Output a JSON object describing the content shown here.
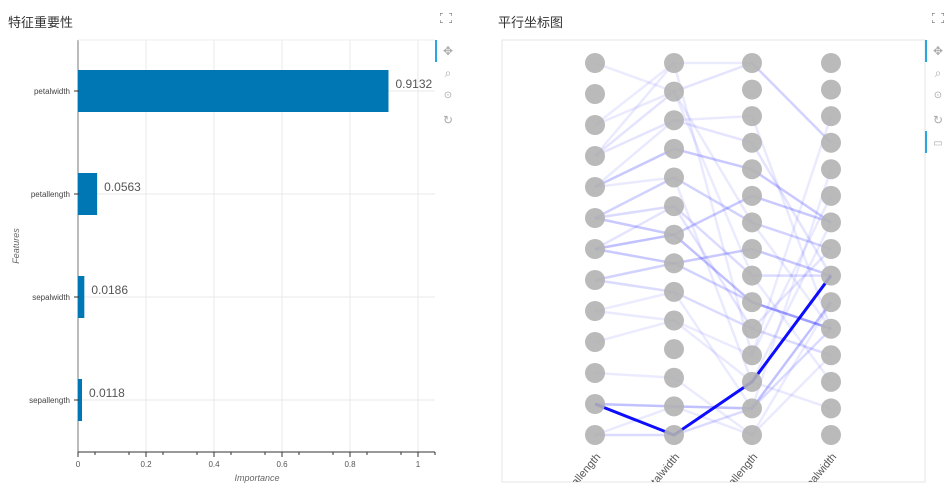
{
  "left_panel": {
    "title": "特征重要性"
  },
  "right_panel": {
    "title": "平行坐标图"
  },
  "toolbar": {
    "icons": [
      "pan-icon",
      "box-zoom-icon",
      "wheel-zoom-icon",
      "reset-icon",
      "hover-icon"
    ]
  },
  "chart_data": [
    {
      "type": "bar",
      "orientation": "horizontal",
      "categories": [
        "petalwidth",
        "petallength",
        "sepalwidth",
        "sepallength"
      ],
      "values": [
        0.9132,
        0.0563,
        0.0186,
        0.0118
      ],
      "data_labels": [
        "0.9132",
        "0.0563",
        "0.0186",
        "0.0118"
      ],
      "xlabel": "Importance",
      "ylabel": "Features",
      "xlim": [
        0,
        1.05
      ],
      "xticks": [
        "0",
        "0.2",
        "0.4",
        "0.6",
        "0.8",
        "1"
      ],
      "grid": true,
      "bar_color": "#0077b5"
    },
    {
      "type": "parallel_coordinates",
      "axes": [
        "petallength",
        "petalwidth",
        "sepallength",
        "sepalwidth"
      ],
      "node_counts": [
        13,
        14,
        15,
        15
      ],
      "node_color": "#b3b3b3",
      "line_color": "#0000ff",
      "paths": [
        {
          "nodes": [
            11,
            13,
            12,
            8
          ],
          "weight": 1.0
        },
        {
          "nodes": [
            11,
            12,
            13,
            9
          ],
          "weight": 0.35
        },
        {
          "nodes": [
            12,
            13,
            13,
            10
          ],
          "weight": 0.2
        },
        {
          "nodes": [
            12,
            12,
            14,
            11
          ],
          "weight": 0.12
        },
        {
          "nodes": [
            6,
            6,
            9,
            10
          ],
          "weight": 0.35
        },
        {
          "nodes": [
            6,
            7,
            7,
            8
          ],
          "weight": 0.3
        },
        {
          "nodes": [
            5,
            6,
            5,
            6
          ],
          "weight": 0.3
        },
        {
          "nodes": [
            4,
            3,
            4,
            6
          ],
          "weight": 0.3
        },
        {
          "nodes": [
            5,
            4,
            6,
            7
          ],
          "weight": 0.25
        },
        {
          "nodes": [
            7,
            7,
            9,
            10
          ],
          "weight": 0.25
        },
        {
          "nodes": [
            7,
            8,
            10,
            11
          ],
          "weight": 0.2
        },
        {
          "nodes": [
            3,
            2,
            3,
            8
          ],
          "weight": 0.15
        },
        {
          "nodes": [
            3,
            1,
            0,
            3
          ],
          "weight": 0.15
        },
        {
          "nodes": [
            2,
            1,
            6,
            10
          ],
          "weight": 0.12
        },
        {
          "nodes": [
            0,
            1,
            8,
            12
          ],
          "weight": 0.1
        },
        {
          "nodes": [
            3,
            0,
            11,
            5
          ],
          "weight": 0.12
        },
        {
          "nodes": [
            4,
            4,
            12,
            6
          ],
          "weight": 0.12
        },
        {
          "nodes": [
            8,
            8,
            13,
            4
          ],
          "weight": 0.1
        },
        {
          "nodes": [
            9,
            9,
            11,
            2
          ],
          "weight": 0.1
        },
        {
          "nodes": [
            8,
            9,
            12,
            13
          ],
          "weight": 0.12
        },
        {
          "nodes": [
            2,
            0,
            0,
            3
          ],
          "weight": 0.1
        },
        {
          "nodes": [
            5,
            5,
            8,
            8
          ],
          "weight": 0.2
        },
        {
          "nodes": [
            4,
            2,
            2,
            10
          ],
          "weight": 0.12
        },
        {
          "nodes": [
            10,
            11,
            14,
            9
          ],
          "weight": 0.1
        },
        {
          "nodes": [
            6,
            5,
            10,
            7
          ],
          "weight": 0.15
        }
      ]
    }
  ]
}
